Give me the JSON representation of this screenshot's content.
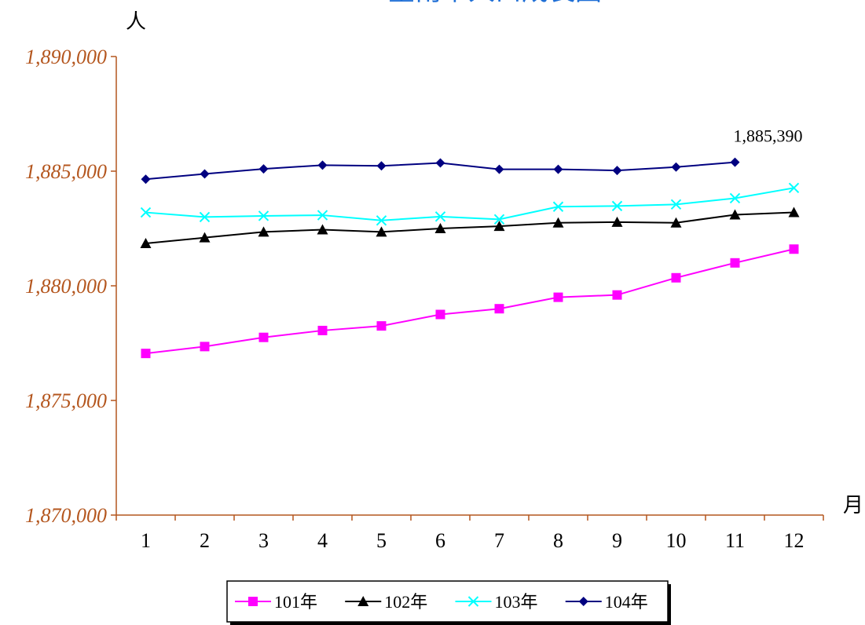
{
  "chart_data": {
    "type": "line",
    "title": "臺南市人口成長圖",
    "y_unit": "人",
    "x_unit": "月",
    "categories": [
      "1",
      "2",
      "3",
      "4",
      "5",
      "6",
      "7",
      "8",
      "9",
      "10",
      "11",
      "12"
    ],
    "ylim": [
      1870000,
      1890000
    ],
    "yticks": [
      1870000,
      1875000,
      1880000,
      1885000,
      1890000
    ],
    "ytick_labels": [
      "1,870,000",
      "1,875,000",
      "1,880,000",
      "1,885,000",
      "1,890,000"
    ],
    "series": [
      {
        "name": "101年",
        "color": "#ff00ff",
        "marker": "square",
        "values": [
          1877050,
          1877350,
          1877750,
          1878050,
          1878250,
          1878750,
          1879000,
          1879500,
          1879600,
          1880350,
          1881000,
          1881600
        ]
      },
      {
        "name": "102年",
        "color": "#000000",
        "marker": "triangle",
        "values": [
          1881850,
          1882100,
          1882350,
          1882450,
          1882350,
          1882500,
          1882600,
          1882750,
          1882780,
          1882750,
          1883100,
          1883200
        ]
      },
      {
        "name": "103年",
        "color": "#00ffff",
        "marker": "x",
        "values": [
          1883200,
          1883000,
          1883050,
          1883080,
          1882850,
          1883020,
          1882900,
          1883450,
          1883480,
          1883550,
          1883820,
          1884270
        ]
      },
      {
        "name": "104年",
        "color": "#000080",
        "marker": "diamond",
        "values": [
          1884650,
          1884880,
          1885100,
          1885260,
          1885230,
          1885360,
          1885080,
          1885080,
          1885030,
          1885180,
          1885390,
          null
        ]
      }
    ],
    "annotation": {
      "text": "1,885,390",
      "series": 3,
      "index": 10
    },
    "grid": false,
    "legend": "bottom"
  }
}
